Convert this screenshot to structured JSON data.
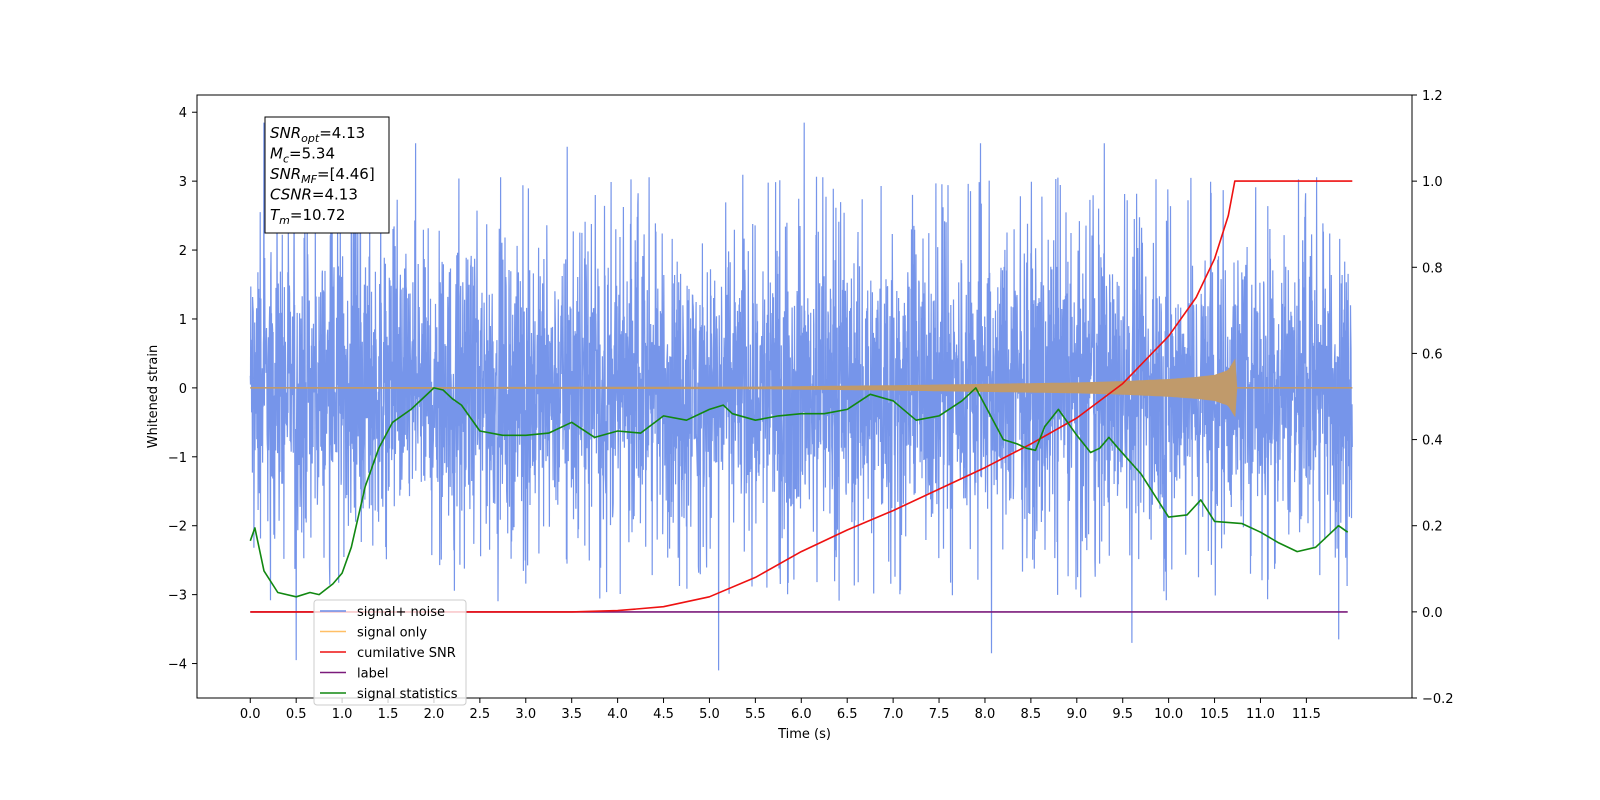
{
  "chart_data": {
    "type": "line",
    "title": "",
    "xlabel": "Time (s)",
    "ylabel": "Whitened strain",
    "xlim": [
      -0.58,
      12.65
    ],
    "ylim": [
      -4.5,
      4.25
    ],
    "y2lim": [
      -0.2,
      1.2
    ],
    "grid": false,
    "legend_position": "lower-left",
    "x_ticks": [
      "0.0",
      "0.5",
      "1.0",
      "1.5",
      "2.0",
      "2.5",
      "3.0",
      "3.5",
      "4.0",
      "4.5",
      "5.0",
      "5.5",
      "6.0",
      "6.5",
      "7.0",
      "7.5",
      "8.0",
      "8.5",
      "9.0",
      "9.5",
      "10.0",
      "10.5",
      "11.0",
      "11.5"
    ],
    "y_ticks": [
      "4",
      "3",
      "2",
      "1",
      "0",
      "−1",
      "−2",
      "−3",
      "−4"
    ],
    "y2_ticks": [
      "1.2",
      "1.0",
      "0.8",
      "0.6",
      "0.4",
      "0.2",
      "0.0",
      "−0.2"
    ],
    "info_box": [
      {
        "main": "SNR",
        "sub": "opt",
        "rest": "=4.13"
      },
      {
        "main": "M",
        "sub": "c",
        "rest": "=5.34"
      },
      {
        "main": "SNR",
        "sub": "MF",
        "rest": "=[4.46]"
      },
      {
        "main": "CSNR",
        "sub": "",
        "rest": "=4.13"
      },
      {
        "main": "T",
        "sub": "m",
        "rest": "=10.72"
      }
    ],
    "legend": [
      {
        "label": "signal+ noise",
        "color": "#6a8ce8"
      },
      {
        "label": "signal only",
        "color": "#ffbf66"
      },
      {
        "label": "cumilative SNR",
        "color": "#ee1111"
      },
      {
        "label": "label",
        "color": "#7b1b7b"
      },
      {
        "label": "signal statistics",
        "color": "#118811"
      }
    ],
    "series": [
      {
        "name": "signal+ noise",
        "axis": "left",
        "color": "#6a8ce8",
        "envelope": {
          "x": [
            0.0,
            12.0
          ],
          "typical_upper": 1.9,
          "typical_lower": -2.1,
          "max": 3.85,
          "min": -4.1
        },
        "peaks": [
          {
            "x": 0.15,
            "y": 3.85
          },
          {
            "x": 1.8,
            "y": 3.55
          },
          {
            "x": 3.45,
            "y": 3.5
          },
          {
            "x": 6.03,
            "y": 3.85
          },
          {
            "x": 7.95,
            "y": 3.55
          },
          {
            "x": 9.3,
            "y": 3.55
          },
          {
            "x": 0.5,
            "y": -3.95
          },
          {
            "x": 5.1,
            "y": -4.1
          },
          {
            "x": 8.07,
            "y": -3.85
          },
          {
            "x": 9.6,
            "y": -3.7
          },
          {
            "x": 11.85,
            "y": -3.65
          }
        ]
      },
      {
        "name": "signal only",
        "axis": "left",
        "color": "#c09a6b",
        "x": [
          0.0,
          5.5,
          7.0,
          8.0,
          9.0,
          9.5,
          10.0,
          10.3,
          10.5,
          10.65,
          10.72,
          10.73,
          12.0
        ],
        "amplitude": [
          0.0,
          0.01,
          0.03,
          0.05,
          0.07,
          0.09,
          0.12,
          0.15,
          0.18,
          0.25,
          0.4,
          0.0,
          0.0
        ]
      },
      {
        "name": "cumilative SNR",
        "axis": "right",
        "color": "#ee1111",
        "x": [
          0.0,
          3.5,
          4.0,
          4.5,
          5.0,
          5.5,
          6.0,
          6.5,
          7.0,
          7.5,
          8.0,
          8.5,
          9.0,
          9.5,
          10.0,
          10.3,
          10.5,
          10.65,
          10.72,
          11.0,
          12.0
        ],
        "y": [
          0.0,
          0.0,
          0.003,
          0.012,
          0.035,
          0.08,
          0.14,
          0.19,
          0.235,
          0.285,
          0.335,
          0.39,
          0.45,
          0.53,
          0.64,
          0.73,
          0.82,
          0.92,
          1.0,
          1.0,
          1.0
        ]
      },
      {
        "name": "label",
        "axis": "right",
        "color": "#7b1b7b",
        "x": [
          0.0,
          11.95
        ],
        "y": [
          0.0,
          0.0
        ]
      },
      {
        "name": "signal statistics",
        "axis": "right",
        "color": "#118811",
        "x": [
          0.0,
          0.05,
          0.15,
          0.3,
          0.5,
          0.65,
          0.75,
          0.9,
          1.0,
          1.1,
          1.25,
          1.4,
          1.55,
          1.75,
          1.9,
          2.0,
          2.1,
          2.2,
          2.3,
          2.5,
          2.75,
          3.0,
          3.25,
          3.5,
          3.75,
          4.0,
          4.25,
          4.5,
          4.75,
          5.0,
          5.15,
          5.25,
          5.5,
          5.75,
          6.0,
          6.25,
          6.5,
          6.75,
          7.0,
          7.25,
          7.5,
          7.75,
          7.9,
          8.0,
          8.2,
          8.35,
          8.45,
          8.55,
          8.65,
          8.8,
          9.0,
          9.15,
          9.25,
          9.35,
          9.45,
          9.7,
          10.0,
          10.2,
          10.35,
          10.5,
          10.8,
          11.0,
          11.2,
          11.4,
          11.6,
          11.85,
          11.95
        ],
        "y": [
          0.165,
          0.195,
          0.095,
          0.045,
          0.035,
          0.045,
          0.04,
          0.065,
          0.09,
          0.15,
          0.29,
          0.38,
          0.44,
          0.47,
          0.5,
          0.52,
          0.515,
          0.495,
          0.48,
          0.42,
          0.41,
          0.41,
          0.415,
          0.44,
          0.405,
          0.42,
          0.415,
          0.455,
          0.445,
          0.47,
          0.48,
          0.46,
          0.445,
          0.455,
          0.46,
          0.46,
          0.47,
          0.505,
          0.49,
          0.445,
          0.455,
          0.49,
          0.52,
          0.48,
          0.4,
          0.39,
          0.38,
          0.375,
          0.43,
          0.47,
          0.41,
          0.37,
          0.38,
          0.405,
          0.38,
          0.32,
          0.22,
          0.225,
          0.26,
          0.21,
          0.205,
          0.185,
          0.16,
          0.14,
          0.15,
          0.2,
          0.185
        ]
      }
    ]
  }
}
